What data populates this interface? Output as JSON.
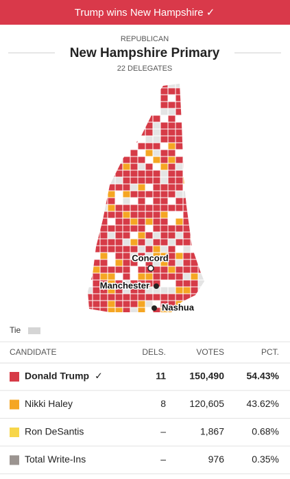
{
  "banner": "Trump wins New Hampshire ✓",
  "header": {
    "party": "REPUBLICAN",
    "title": "New Hampshire Primary",
    "delegates": "22 DELEGATES"
  },
  "map": {
    "places": [
      "Concord",
      "Manchester",
      "Nashua"
    ],
    "legend": "Tie"
  },
  "table": {
    "columns": [
      "CANDIDATE",
      "DELS.",
      "VOTES",
      "PCT."
    ],
    "rows": [
      {
        "name": "Donald Trump",
        "winner_mark": "✓",
        "color": "#d63b47",
        "dels": "11",
        "votes": "150,490",
        "pct": "54.43%"
      },
      {
        "name": "Nikki Haley",
        "color": "#f5a623",
        "dels": "8",
        "votes": "120,605",
        "pct": "43.62%"
      },
      {
        "name": "Ron DeSantis",
        "color": "#f7d64a",
        "dels": "–",
        "votes": "1,867",
        "pct": "0.68%"
      },
      {
        "name": "Total Write-Ins",
        "color": "#9b9490",
        "dels": "–",
        "votes": "976",
        "pct": "0.35%"
      }
    ]
  }
}
